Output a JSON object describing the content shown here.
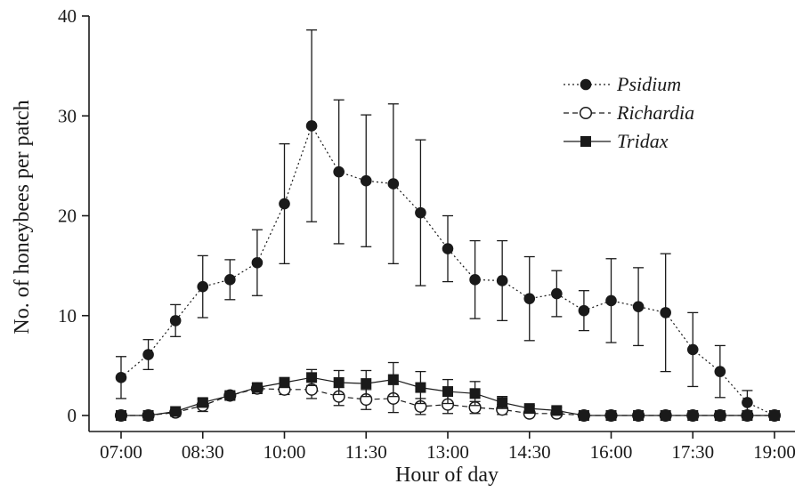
{
  "chart_data": {
    "type": "line",
    "title": "",
    "xlabel": "Hour of day",
    "ylabel": "No. of honeybees per patch",
    "ylim": [
      0,
      40
    ],
    "yticks": [
      0,
      10,
      20,
      30,
      40
    ],
    "xticks": [
      "07:00",
      "08:30",
      "10:00",
      "11:30",
      "13:00",
      "14:30",
      "16:00",
      "17:30",
      "19:00"
    ],
    "x_start": "07:00",
    "x_step_minutes": 30,
    "x": [
      "07:00",
      "07:30",
      "08:00",
      "08:30",
      "09:00",
      "09:30",
      "10:00",
      "10:30",
      "11:00",
      "11:30",
      "12:00",
      "12:30",
      "13:00",
      "13:30",
      "14:00",
      "14:30",
      "15:00",
      "15:30",
      "16:00",
      "16:30",
      "17:00",
      "17:30",
      "18:00",
      "18:30",
      "19:00"
    ],
    "legend_position": "top-right",
    "series": [
      {
        "name": "Psidium",
        "marker": "filled-circle",
        "line": "dotted",
        "values": [
          3.8,
          6.1,
          9.5,
          12.9,
          13.6,
          15.3,
          21.2,
          29.0,
          24.4,
          23.5,
          23.2,
          20.3,
          16.7,
          13.6,
          13.5,
          11.7,
          12.2,
          10.5,
          11.5,
          10.9,
          10.3,
          6.6,
          4.4,
          1.3,
          0.0
        ],
        "errors": [
          2.1,
          1.5,
          1.6,
          3.1,
          2.0,
          3.3,
          6.0,
          9.6,
          7.2,
          6.6,
          8.0,
          7.3,
          3.3,
          3.9,
          4.0,
          4.2,
          2.3,
          2.0,
          4.2,
          3.9,
          5.9,
          3.7,
          2.6,
          1.2,
          0.0
        ]
      },
      {
        "name": "Richardia",
        "marker": "open-circle",
        "line": "dashed",
        "values": [
          0.0,
          0.0,
          0.3,
          1.0,
          2.0,
          2.7,
          2.6,
          2.6,
          1.9,
          1.6,
          1.7,
          0.9,
          1.1,
          0.8,
          0.6,
          0.2,
          0.2,
          0.0,
          0.0,
          0.0,
          0.0,
          0.0,
          0.0,
          0.0,
          0.0
        ],
        "errors": [
          0.0,
          0.0,
          0.2,
          0.6,
          0.4,
          0.5,
          0.5,
          0.9,
          0.9,
          1.0,
          1.4,
          0.8,
          0.9,
          0.6,
          0.5,
          0.2,
          0.2,
          0.0,
          0.0,
          0.0,
          0.0,
          0.0,
          0.0,
          0.0,
          0.0
        ]
      },
      {
        "name": "Tridax",
        "marker": "filled-square",
        "line": "solid",
        "values": [
          0.0,
          0.0,
          0.4,
          1.3,
          2.0,
          2.8,
          3.3,
          3.8,
          3.3,
          3.2,
          3.6,
          2.8,
          2.4,
          2.2,
          1.3,
          0.7,
          0.5,
          0.0,
          0.0,
          0.0,
          0.0,
          0.0,
          0.0,
          0.0,
          0.0
        ],
        "errors": [
          0.0,
          0.0,
          0.2,
          0.4,
          0.4,
          0.4,
          0.5,
          0.8,
          1.2,
          1.3,
          1.7,
          1.6,
          1.2,
          1.2,
          0.6,
          0.3,
          0.3,
          0.0,
          0.0,
          0.0,
          0.0,
          0.0,
          0.0,
          0.0,
          0.0
        ]
      }
    ]
  }
}
